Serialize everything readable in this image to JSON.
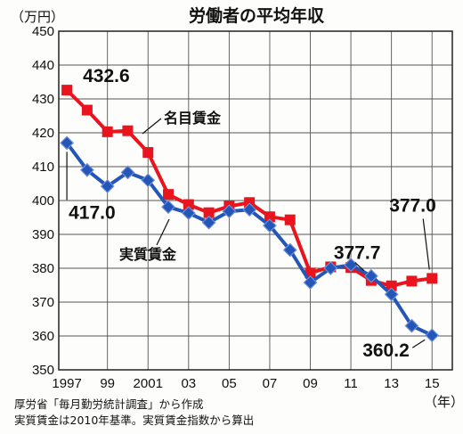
{
  "chart_data": {
    "type": "line",
    "title": "労働者の平均年収",
    "y_unit": "（万円）",
    "x_unit": "（年）",
    "ylim": [
      350,
      450
    ],
    "yticks": [
      350,
      360,
      370,
      380,
      390,
      400,
      410,
      420,
      430,
      440,
      450
    ],
    "x": [
      1997,
      1998,
      1999,
      2000,
      2001,
      2002,
      2003,
      2004,
      2005,
      2006,
      2007,
      2008,
      2009,
      2010,
      2011,
      2012,
      2013,
      2014,
      2015
    ],
    "xtick_labels": [
      {
        "x": 1997,
        "label": "1997"
      },
      {
        "x": 1999,
        "label": "99"
      },
      {
        "x": 2001,
        "label": "2001"
      },
      {
        "x": 2003,
        "label": "03"
      },
      {
        "x": 2005,
        "label": "05"
      },
      {
        "x": 2007,
        "label": "07"
      },
      {
        "x": 2009,
        "label": "09"
      },
      {
        "x": 2011,
        "label": "11"
      },
      {
        "x": 2013,
        "label": "13"
      },
      {
        "x": 2015,
        "label": "15"
      }
    ],
    "grid": true,
    "series": [
      {
        "name": "名目賃金",
        "color": "#e8141e",
        "marker": "square",
        "values": [
          432.6,
          426.7,
          420.3,
          420.6,
          414.2,
          401.8,
          398.8,
          396.4,
          398.3,
          399.4,
          395.2,
          394.3,
          378.6,
          380.4,
          380.2,
          376.4,
          374.8,
          376.2,
          377.0
        ]
      },
      {
        "name": "実質賃金",
        "color": "#2456b8",
        "marker": "diamond",
        "values": [
          417.0,
          409.0,
          404.2,
          408.3,
          406.0,
          398.1,
          396.3,
          393.5,
          396.8,
          397.3,
          392.6,
          385.4,
          375.8,
          380.0,
          381.0,
          377.7,
          372.3,
          363.0,
          360.2
        ]
      }
    ],
    "annotations": [
      {
        "text": "432.6",
        "series": "名目賃金",
        "x": 1997
      },
      {
        "text": "417.0",
        "series": "実質賃金",
        "x": 1997
      },
      {
        "text": "377.7",
        "series": "実質賃金",
        "x": 2012
      },
      {
        "text": "377.0",
        "series": "名目賃金",
        "x": 2015
      },
      {
        "text": "360.2",
        "series": "実質賃金",
        "x": 2015
      }
    ],
    "notes": [
      "厚労省「毎月勤労統計調査」から作成",
      "実質賃金は2010年基準。実質賃金指数から算出"
    ]
  }
}
